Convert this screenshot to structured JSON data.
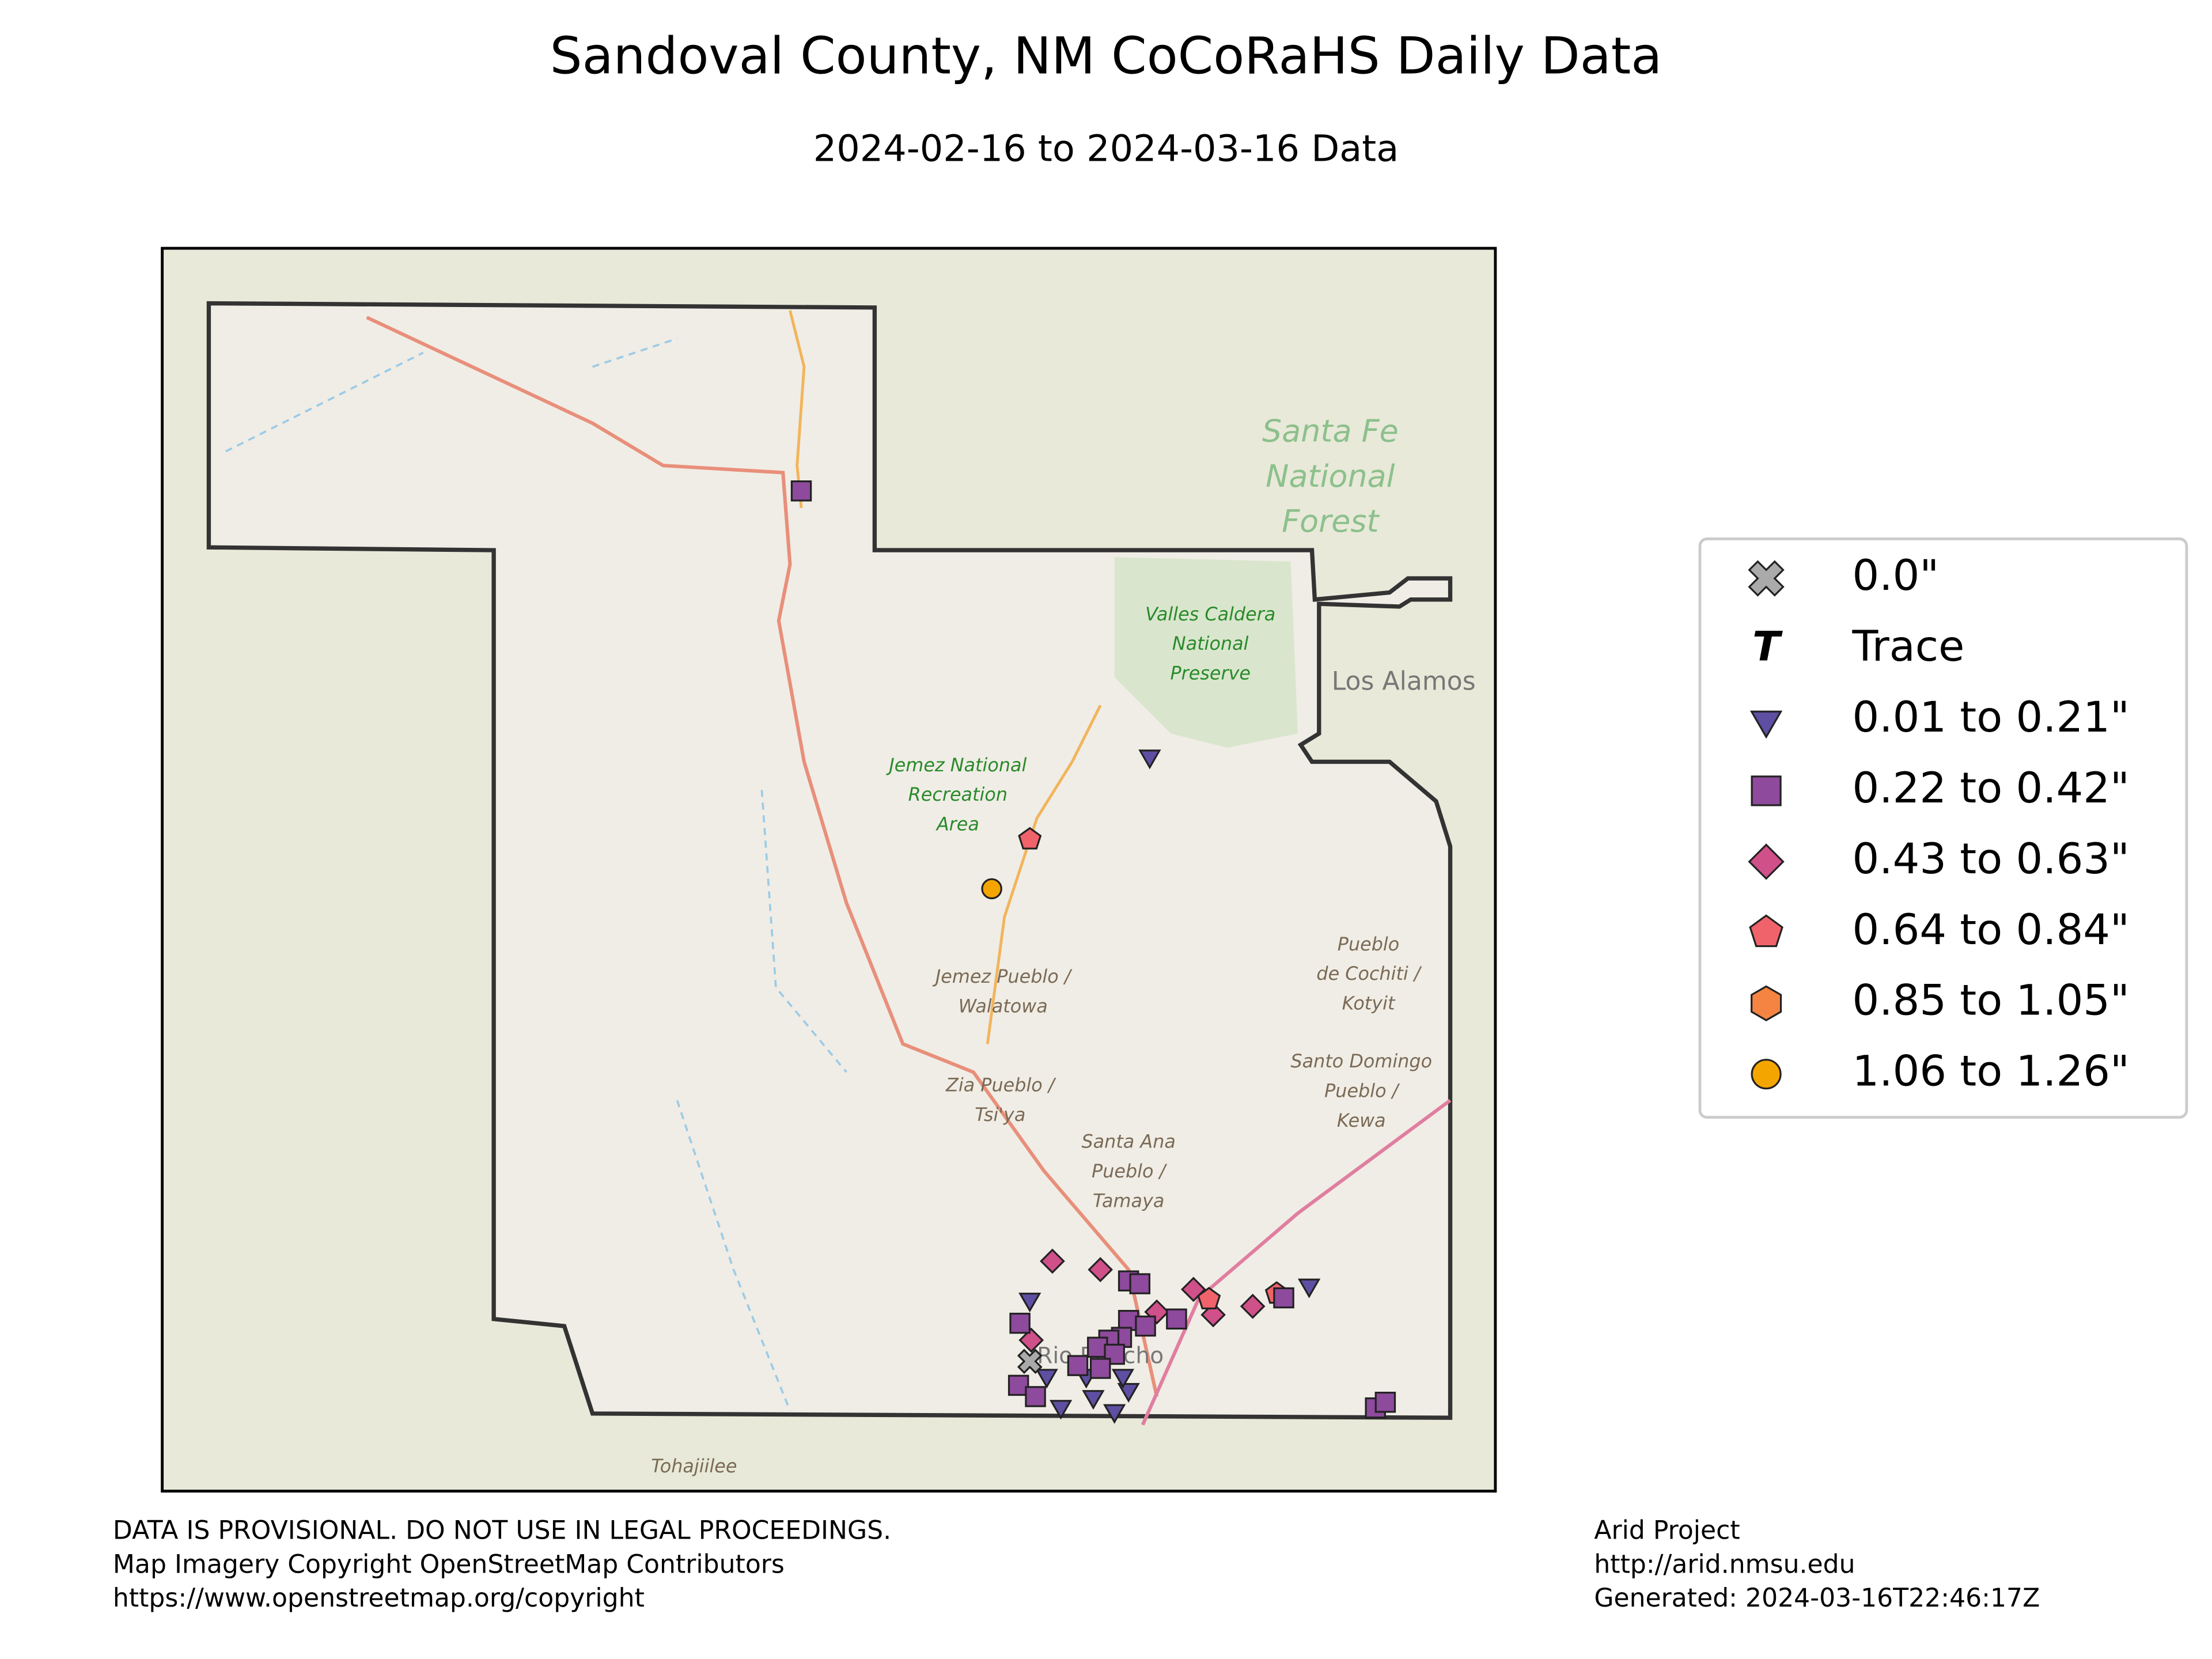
{
  "title": "Sandoval County, NM CoCoRaHS Daily Data",
  "subtitle": "2024-02-16 to 2024-03-16 Data",
  "map_labels": [
    {
      "lines": [
        "Santa Fe",
        "National",
        "Forest"
      ],
      "kind": "forest"
    },
    {
      "lines": [
        "Valles Caldera",
        "National",
        "Preserve"
      ],
      "kind": "park"
    },
    {
      "lines": [
        "Jemez National",
        "Recreation",
        "Area"
      ],
      "kind": "park"
    },
    {
      "lines": [
        "Jemez Pueblo /",
        "Walatowa"
      ],
      "kind": "pueblo"
    },
    {
      "lines": [
        "Zia Pueblo /",
        "Tsi'ya"
      ],
      "kind": "pueblo"
    },
    {
      "lines": [
        "Santa Ana",
        "Pueblo /",
        "Tamaya"
      ],
      "kind": "pueblo"
    },
    {
      "lines": [
        "Pueblo",
        "de Cochiti /",
        "Kotyit"
      ],
      "kind": "pueblo"
    },
    {
      "lines": [
        "Santo Domingo",
        "Pueblo /",
        "Kewa"
      ],
      "kind": "pueblo"
    },
    {
      "lines": [
        "Los Alamos"
      ],
      "kind": "town"
    },
    {
      "lines": [
        "Rio Rancho"
      ],
      "kind": "town"
    },
    {
      "lines": [
        "Tohajiilee"
      ],
      "kind": "pueblo"
    }
  ],
  "legend": [
    "0.0\"",
    "Trace",
    "0.01 to 0.21\"",
    "0.22 to 0.42\"",
    "0.43 to 0.63\"",
    "0.64 to 0.84\"",
    "0.85 to 1.05\"",
    "1.06 to 1.26\""
  ],
  "footer_left": [
    "DATA IS PROVISIONAL. DO NOT USE IN LEGAL PROCEEDINGS.",
    "Map Imagery Copyright OpenStreetMap Contributors",
    "https://www.openstreetmap.org/copyright"
  ],
  "footer_right": [
    "Arid Project",
    "http://arid.nmsu.edu",
    "Generated: 2024-03-16T22:46:17Z"
  ]
}
